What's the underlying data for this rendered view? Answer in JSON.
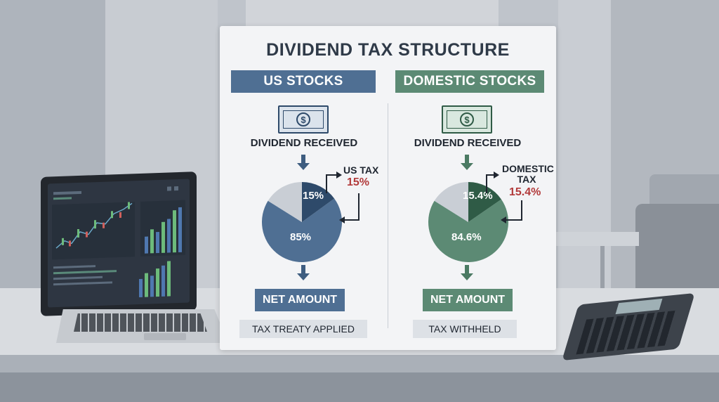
{
  "title": "DIVIDEND TAX STRUCTURE",
  "colors": {
    "us_primary": "#4f6f93",
    "us_dark": "#2e4a6a",
    "domestic_primary": "#5c8a74",
    "domestic_dark": "#2f5b46",
    "tax_slice": "#c9ced5",
    "tax_value_red": "#b23b3b"
  },
  "columns": [
    {
      "id": "us",
      "header": "US STOCKS",
      "bill_symbol": "$",
      "received_label": "DIVIDEND RECEIVED",
      "tax_name": "US TAX",
      "tax_value": "15%",
      "slice_tax_label": "15%",
      "slice_net_label": "85%",
      "tax_percent": 15,
      "net_percent": 85,
      "net_label": "NET AMOUNT",
      "note": "TAX TREATY APPLIED"
    },
    {
      "id": "domestic",
      "header": "DOMESTIC STOCKS",
      "bill_symbol": "$",
      "received_label": "DIVIDEND RECEIVED",
      "tax_name_line1": "DOMESTIC",
      "tax_name_line2": "TAX",
      "tax_value": "15.4%",
      "slice_tax_label": "15.4%",
      "slice_net_label": "84.6%",
      "tax_percent": 15.4,
      "net_percent": 84.6,
      "net_label": "NET AMOUNT",
      "note": "TAX WITHHELD"
    }
  ],
  "icons": [
    "dollar-bill-icon",
    "arrow-down-icon",
    "pie-chart",
    "laptop",
    "calculator"
  ]
}
